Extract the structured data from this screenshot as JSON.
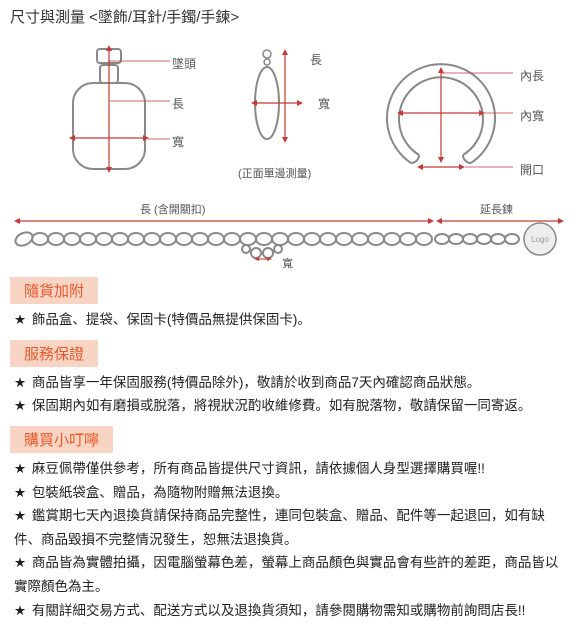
{
  "title": "尺寸與測量 <墜飾/耳針/手鐲/手鍊>",
  "diagram": {
    "pendant": {
      "bail": "墜頭",
      "height": "長",
      "width": "寬"
    },
    "earring": {
      "height": "長",
      "width": "寬",
      "note": "(正面單邊測量)"
    },
    "bangle": {
      "inner_height": "內長",
      "inner_width": "內寬",
      "gap": "開口"
    },
    "chain": {
      "length": "長 (含開關扣)",
      "width": "寬",
      "ext": "延長鍊",
      "logo": "Logo"
    }
  },
  "sections": [
    {
      "header": "隨貨加附",
      "items": [
        "飾品盒、提袋、保固卡(特價品無提供保固卡)。"
      ]
    },
    {
      "header": "服務保證",
      "items": [
        "商品皆享一年保固服務(特價品除外)，敬請於收到商品7天內確認商品狀態。",
        "保固期內如有磨損或脫落，將視狀況酌收維修費。如有脫落物，敬請保留一同寄返。"
      ]
    },
    {
      "header": "購買小叮嚀",
      "items": [
        "麻豆佩帶僅供參考，所有商品皆提供尺寸資訊，請依據個人身型選擇購買喔!!",
        "包裝紙袋盒、贈品，為隨物附贈無法退換。",
        "鑑賞期七天內退換貨請保持商品完整性，連同包裝盒、贈品、配件等一起退回，如有缺件、商品毀損不完整情況發生，恕無法退換貨。",
        "商品皆為實體拍攝，因電腦螢幕色差，螢幕上商品顏色與實品會有些許的差距，商品皆以實際顏色為主。",
        "有關詳細交易方式、配送方式以及退換貨須知，請參閱購物需知或購物前詢問店長!!"
      ]
    }
  ],
  "colors": {
    "accent": "#e85a2c",
    "header_bg": "#f7d4c3",
    "line": "#c73838",
    "outline": "#888"
  }
}
